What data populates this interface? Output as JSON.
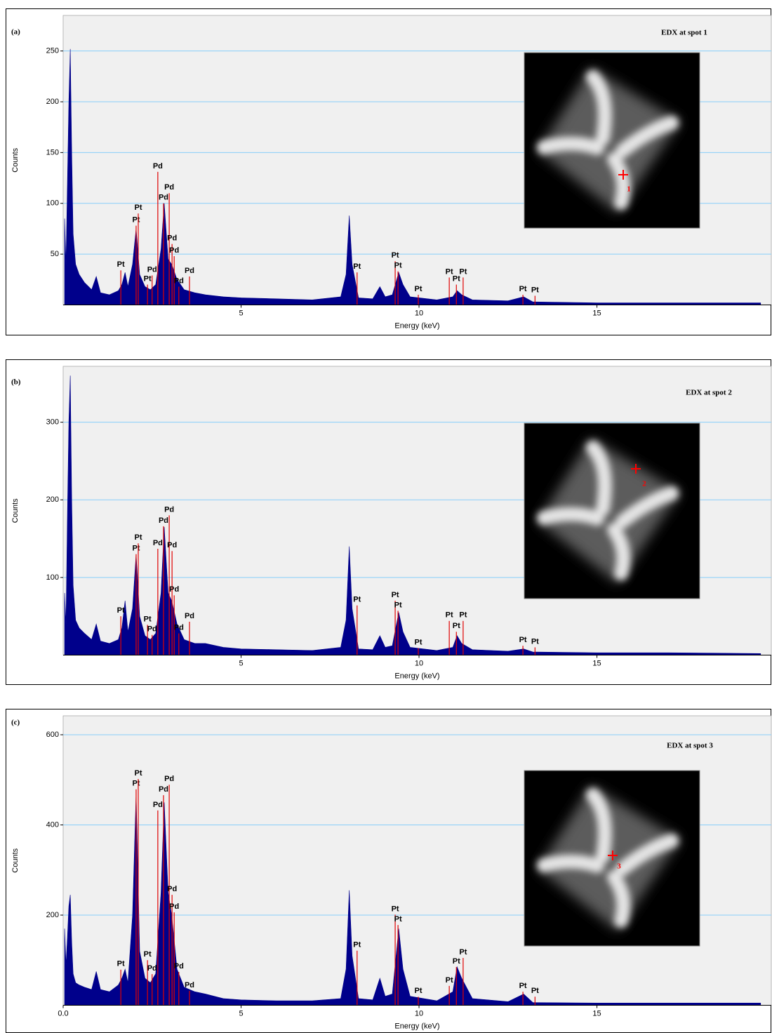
{
  "chart_data": [
    {
      "type": "area",
      "panel_label": "(a)",
      "inset_title": "EDX at spot 1",
      "inset_spot": "1",
      "xlabel": "Energy (keV)",
      "ylabel": "Counts",
      "color": "#00008b",
      "xlim": [
        0,
        19.9
      ],
      "ylim": [
        0,
        285
      ],
      "xticks": [
        5,
        10,
        15
      ],
      "yticks": [
        50,
        100,
        150,
        200,
        250
      ],
      "grid": true,
      "x": [
        0.04,
        0.08,
        0.12,
        0.16,
        0.2,
        0.24,
        0.28,
        0.35,
        0.45,
        0.6,
        0.8,
        0.93,
        1.05,
        1.3,
        1.55,
        1.65,
        1.74,
        1.82,
        1.95,
        2.05,
        2.15,
        2.3,
        2.45,
        2.6,
        2.75,
        2.84,
        2.95,
        3.05,
        3.2,
        3.4,
        3.7,
        4.0,
        4.5,
        5.0,
        6.0,
        7.0,
        7.8,
        7.95,
        8.04,
        8.12,
        8.3,
        8.7,
        8.9,
        9.05,
        9.25,
        9.43,
        9.55,
        9.75,
        10.5,
        10.95,
        11.07,
        11.2,
        11.5,
        12.5,
        12.94,
        13.2,
        15,
        17,
        19.6
      ],
      "values": [
        85,
        40,
        120,
        200,
        252,
        150,
        70,
        40,
        30,
        22,
        15,
        28,
        12,
        10,
        14,
        20,
        32,
        18,
        40,
        75,
        30,
        18,
        15,
        20,
        55,
        100,
        45,
        40,
        25,
        15,
        12,
        10,
        8,
        7,
        6,
        5,
        8,
        30,
        88,
        40,
        7,
        6,
        18,
        8,
        10,
        32,
        20,
        8,
        5,
        8,
        14,
        10,
        5,
        4,
        8,
        3,
        2,
        2,
        2
      ],
      "markers": {
        "color": "#e00000",
        "x": [
          1.62,
          2.05,
          2.11,
          2.37,
          2.5,
          2.66,
          2.82,
          2.98,
          3.06,
          3.12,
          3.25,
          3.55,
          8.26,
          9.33,
          9.41,
          9.98,
          10.85,
          11.05,
          11.24,
          12.92,
          13.26
        ],
        "values": [
          34,
          78,
          90,
          20,
          29,
          131,
          100,
          110,
          60,
          48,
          18,
          28,
          32,
          43,
          33,
          10,
          27,
          20,
          27,
          10,
          9
        ],
        "labels": [
          "Pt",
          "Pt",
          "Pt",
          "Pt",
          "Pd",
          "Pd",
          "Pd",
          "Pd",
          "Pd",
          "Pd",
          "Pd",
          "Pd",
          "Pt",
          "Pt",
          "Pt",
          "Pt",
          "Pt",
          "Pt",
          "Pt",
          "Pt",
          "Pt"
        ]
      }
    },
    {
      "type": "area",
      "panel_label": "(b)",
      "inset_title": "EDX at spot 2",
      "inset_spot": "2",
      "xlabel": "Energy (keV)",
      "ylabel": "Counts",
      "color": "#00008b",
      "xlim": [
        0,
        19.9
      ],
      "ylim": [
        0,
        372
      ],
      "xticks": [
        5,
        10,
        15
      ],
      "yticks": [
        100,
        200,
        300
      ],
      "grid": true,
      "x": [
        0.04,
        0.08,
        0.12,
        0.16,
        0.2,
        0.24,
        0.28,
        0.35,
        0.45,
        0.6,
        0.8,
        0.93,
        1.05,
        1.3,
        1.55,
        1.65,
        1.74,
        1.82,
        1.95,
        2.05,
        2.15,
        2.3,
        2.45,
        2.6,
        2.75,
        2.84,
        2.95,
        3.05,
        3.2,
        3.4,
        3.7,
        4.0,
        4.5,
        5.0,
        6.0,
        7.0,
        7.8,
        7.95,
        8.04,
        8.12,
        8.3,
        8.7,
        8.9,
        9.05,
        9.25,
        9.43,
        9.55,
        9.75,
        10.5,
        10.95,
        11.07,
        11.2,
        11.5,
        12.5,
        12.94,
        13.2,
        15,
        17,
        19.6
      ],
      "values": [
        80,
        40,
        180,
        300,
        360,
        200,
        90,
        45,
        35,
        28,
        20,
        40,
        18,
        15,
        20,
        35,
        70,
        30,
        60,
        130,
        50,
        25,
        20,
        28,
        80,
        165,
        80,
        70,
        40,
        20,
        15,
        15,
        10,
        8,
        7,
        6,
        10,
        45,
        140,
        60,
        8,
        7,
        25,
        10,
        12,
        55,
        30,
        10,
        6,
        10,
        25,
        15,
        7,
        5,
        8,
        4,
        3,
        3,
        2
      ],
      "markers": {
        "color": "#e00000",
        "x": [
          1.62,
          2.05,
          2.11,
          2.37,
          2.5,
          2.66,
          2.82,
          2.98,
          3.06,
          3.12,
          3.25,
          3.55,
          8.26,
          9.33,
          9.41,
          9.98,
          10.85,
          11.05,
          11.24,
          12.92,
          13.26
        ],
        "values": [
          50,
          130,
          144,
          39,
          26,
          137,
          166,
          180,
          134,
          77,
          28,
          43,
          64,
          70,
          57,
          9,
          44,
          30,
          44,
          12,
          10
        ],
        "labels": [
          "Pt",
          "Pt",
          "Pt",
          "Pt",
          "Pd",
          "Pd",
          "Pd",
          "Pd",
          "Pd",
          "Pd",
          "Pd",
          "Pd",
          "Pt",
          "Pt",
          "Pt",
          "Pt",
          "Pt",
          "Pt",
          "Pt",
          "Pt",
          "Pt"
        ]
      }
    },
    {
      "type": "area",
      "panel_label": "(c)",
      "inset_title": "EDX at spot 3",
      "inset_spot": "3",
      "xlabel": "Energy (keV)",
      "ylabel": "Counts",
      "color": "#00008b",
      "xlim": [
        0,
        19.9
      ],
      "ylim": [
        0,
        642
      ],
      "xticks": [
        {
          "value": 0,
          "label": "0.0"
        },
        5,
        10,
        15
      ],
      "yticks": [
        200,
        400,
        600
      ],
      "grid": true,
      "x": [
        0.04,
        0.08,
        0.12,
        0.16,
        0.2,
        0.24,
        0.28,
        0.35,
        0.45,
        0.6,
        0.8,
        0.93,
        1.05,
        1.3,
        1.55,
        1.65,
        1.74,
        1.82,
        1.95,
        2.05,
        2.15,
        2.3,
        2.45,
        2.6,
        2.75,
        2.84,
        2.95,
        3.05,
        3.2,
        3.4,
        3.7,
        4.0,
        4.5,
        5.0,
        6.0,
        7.0,
        7.8,
        7.95,
        8.04,
        8.12,
        8.3,
        8.7,
        8.9,
        9.05,
        9.25,
        9.43,
        9.55,
        9.75,
        10.5,
        10.95,
        11.07,
        11.2,
        11.5,
        12.5,
        12.94,
        13.2,
        15,
        17,
        19.6
      ],
      "values": [
        170,
        90,
        150,
        220,
        245,
        140,
        70,
        50,
        45,
        40,
        35,
        75,
        35,
        30,
        45,
        60,
        80,
        50,
        200,
        470,
        120,
        60,
        50,
        70,
        250,
        450,
        250,
        200,
        80,
        40,
        30,
        25,
        15,
        12,
        10,
        10,
        15,
        80,
        255,
        110,
        15,
        12,
        60,
        20,
        25,
        170,
        80,
        20,
        10,
        30,
        85,
        60,
        15,
        8,
        25,
        6,
        5,
        5,
        5
      ],
      "markers": {
        "color": "#e00000",
        "x": [
          1.62,
          2.05,
          2.11,
          2.37,
          2.5,
          2.66,
          2.82,
          2.98,
          3.06,
          3.12,
          3.25,
          3.55,
          8.26,
          9.33,
          9.41,
          9.98,
          10.85,
          11.05,
          11.24,
          12.92,
          13.26
        ],
        "values": [
          79,
          479,
          502,
          100,
          69,
          432,
          466,
          489,
          245,
          206,
          74,
          32,
          121,
          201,
          178,
          19,
          43,
          85,
          105,
          30,
          19
        ],
        "labels": [
          "Pt",
          "Pt",
          "Pt",
          "Pt",
          "Pd",
          "Pd",
          "Pd",
          "Pd",
          "Pd",
          "Pd",
          "Pd",
          "Pd",
          "Pt",
          "Pt",
          "Pt",
          "Pt",
          "Pt",
          "Pt",
          "Pt",
          "Pt",
          "Pt"
        ]
      }
    }
  ]
}
